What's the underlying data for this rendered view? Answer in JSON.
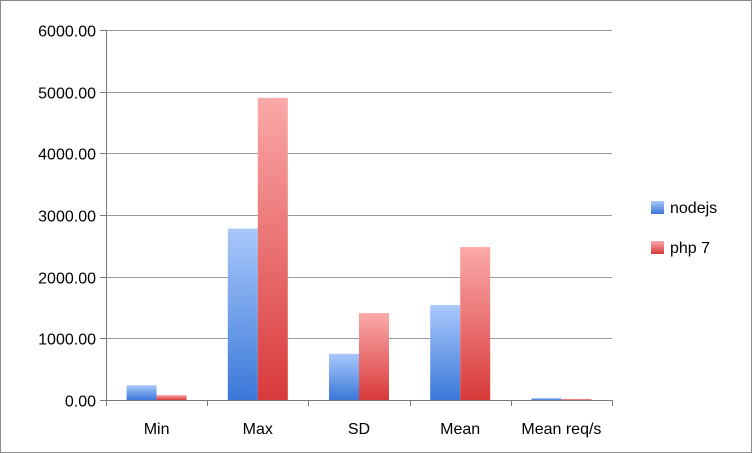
{
  "chart_data": {
    "type": "bar",
    "title": "",
    "xlabel": "",
    "ylabel": "",
    "categories": [
      "Min",
      "Max",
      "SD",
      "Mean",
      "Mean req/s"
    ],
    "series": [
      {
        "name": "nodejs",
        "values": [
          240,
          2780,
          750,
          1540,
          30
        ],
        "color": "#4a86e0"
      },
      {
        "name": "php 7",
        "values": [
          80,
          4900,
          1410,
          2480,
          15
        ],
        "color": "#e04848"
      }
    ],
    "ylim": [
      0,
      6000
    ],
    "yticks": [
      "0.00",
      "1000.00",
      "2000.00",
      "3000.00",
      "4000.00",
      "5000.00",
      "6000.00"
    ],
    "grid": true,
    "legend_position": "right"
  }
}
